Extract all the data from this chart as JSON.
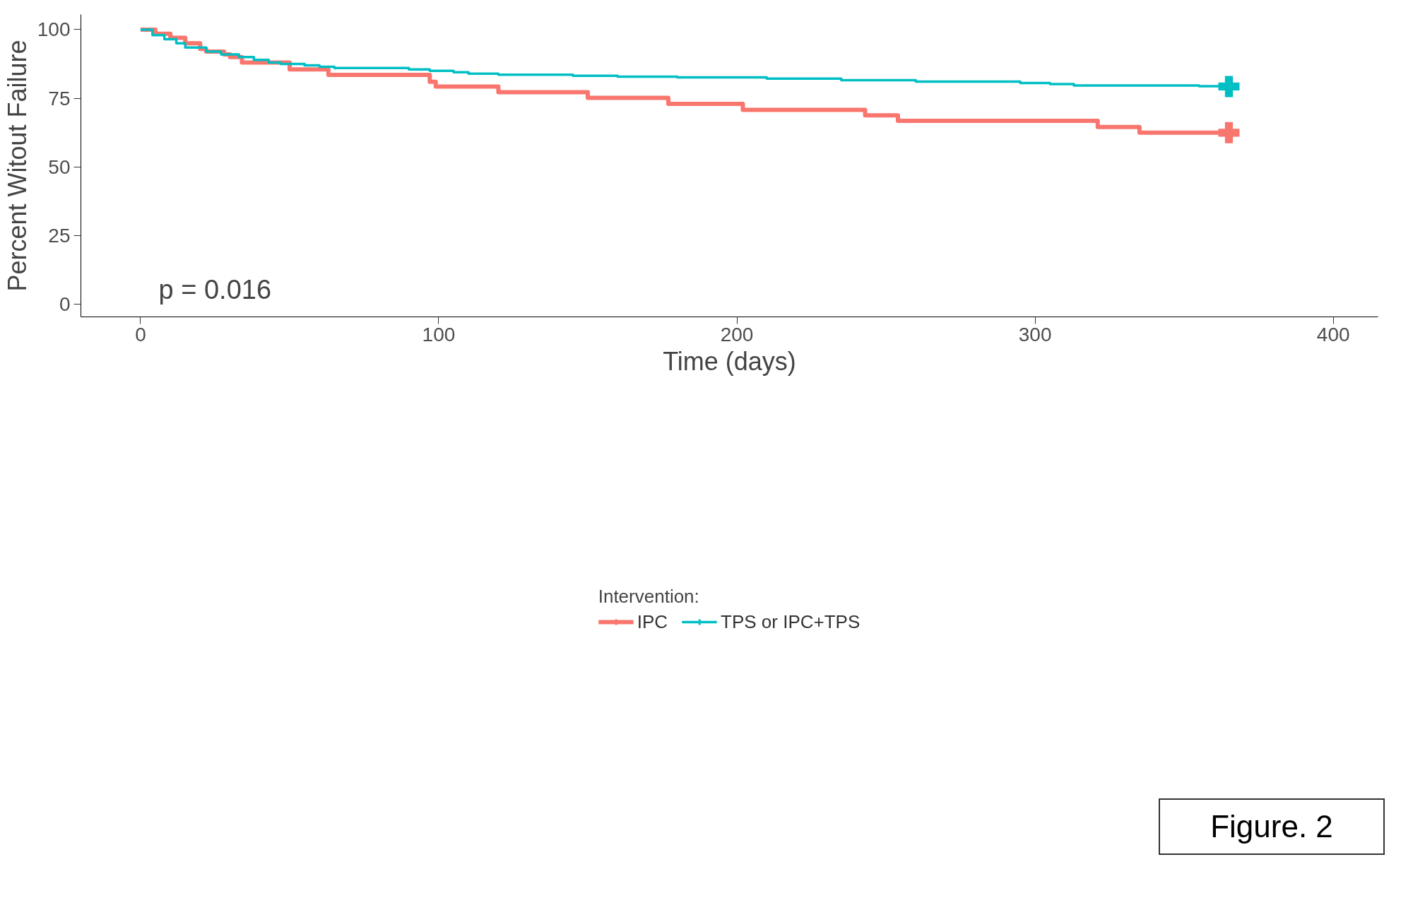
{
  "chart_data": {
    "type": "step",
    "xlabel": "Time (days)",
    "ylabel": "Percent Witout Failure",
    "legend_title": "Intervention:",
    "series": [
      {
        "name": "IPC",
        "color": "#f8766d",
        "x": [
          0,
          5,
          10,
          15,
          20,
          22,
          28,
          30,
          34,
          50,
          63,
          97,
          99,
          120,
          150,
          177,
          202,
          243,
          254,
          321,
          335,
          365
        ],
        "values": [
          100,
          98.5,
          97,
          95,
          93,
          92,
          91,
          90,
          88,
          85.5,
          83.5,
          81,
          79.3,
          77.2,
          75.2,
          73,
          70.8,
          68.8,
          66.8,
          64.6,
          62.5,
          62.5
        ]
      },
      {
        "name": "TPS or IPC+TPS",
        "color": "#00bfc4",
        "x": [
          0,
          4,
          8,
          12,
          15,
          22,
          27,
          33,
          38,
          43,
          47,
          55,
          60,
          65,
          90,
          97,
          105,
          110,
          120,
          145,
          160,
          180,
          210,
          235,
          260,
          295,
          305,
          313,
          355,
          365
        ],
        "values": [
          100,
          98,
          96.5,
          95,
          93.5,
          92,
          91,
          90,
          89,
          88,
          87.5,
          87,
          86.5,
          86,
          85.5,
          85,
          84.5,
          84,
          83.6,
          83.2,
          82.9,
          82.6,
          82.2,
          81.6,
          81.1,
          80.6,
          80.2,
          79.7,
          79.4,
          79.3
        ]
      },
      {
        "type": "scatter",
        "marker": "cross",
        "color": "#f8766d",
        "x": [
          365
        ],
        "values": [
          62.5
        ]
      },
      {
        "type": "scatter",
        "marker": "cross",
        "color": "#00bfc4",
        "x": [
          365
        ],
        "values": [
          79.3
        ]
      }
    ],
    "xlim": [
      -20,
      415
    ],
    "ylim": [
      -4.5,
      105.5
    ],
    "xticks": [
      0,
      100,
      200,
      300,
      400
    ],
    "yticks": [
      0,
      25,
      50,
      75,
      100
    ],
    "grid": false,
    "legend": "bottom",
    "annotations": [
      "p = 0.016",
      "Figure. 2"
    ]
  }
}
